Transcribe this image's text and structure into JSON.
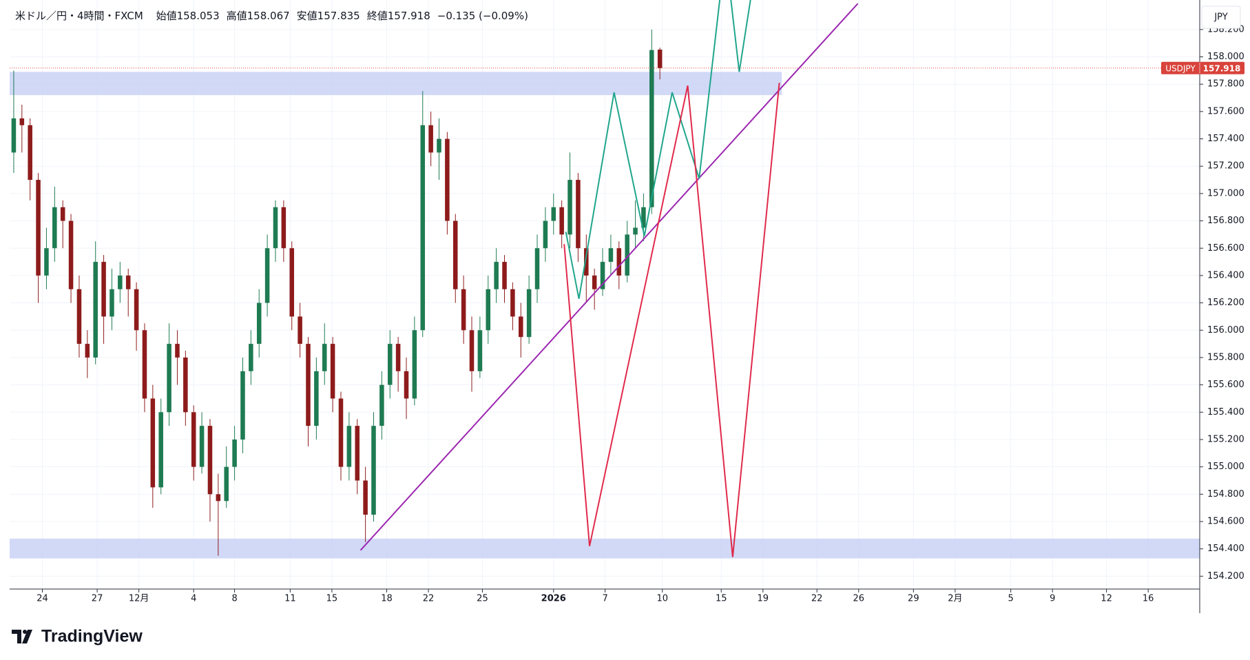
{
  "chart_data": {
    "type": "candlestick",
    "title": "米ドル／円・4時間・FXCM",
    "ohlc_legend": [
      {
        "label": "始値",
        "value": 158.053
      },
      {
        "label": "高値",
        "value": 158.067
      },
      {
        "label": "安値",
        "value": 157.835
      },
      {
        "label": "終値",
        "value": 157.918
      }
    ],
    "change_label": "−0.135 (−0.09%)",
    "symbol": "USDJPY",
    "currency": "JPY",
    "open": [
      157.3,
      157.55,
      157.5,
      157.1,
      156.4,
      156.6,
      156.9,
      156.8,
      156.3,
      155.9,
      155.8,
      156.5,
      156.1,
      156.3,
      156.4,
      156.3,
      156.0,
      155.5,
      154.85,
      155.4,
      155.9,
      155.8,
      155.4,
      155.0,
      155.3,
      154.8,
      154.75,
      155.0,
      155.2,
      155.7,
      155.9,
      156.2,
      156.6,
      156.9,
      156.6,
      156.1,
      155.9,
      155.3,
      155.7,
      155.9,
      155.5,
      155.0,
      155.3,
      154.9,
      154.65,
      155.3,
      155.6,
      155.9,
      155.7,
      155.5,
      156.0,
      157.5,
      157.3,
      157.4,
      156.8,
      156.3,
      156.0,
      155.7,
      156.0,
      156.3,
      156.5,
      156.3,
      156.1,
      155.95,
      156.3,
      156.6,
      156.8,
      156.9,
      156.7,
      157.1,
      156.6,
      156.4,
      156.3,
      156.5,
      156.6,
      156.4,
      156.7,
      156.75,
      156.9,
      158.053
    ],
    "high": [
      157.9,
      157.65,
      157.55,
      157.15,
      156.75,
      157.05,
      156.95,
      156.85,
      156.4,
      156.0,
      156.65,
      156.55,
      156.45,
      156.5,
      156.45,
      156.35,
      156.05,
      155.6,
      155.5,
      156.05,
      156.0,
      155.85,
      155.45,
      155.4,
      155.35,
      154.95,
      155.15,
      155.3,
      155.8,
      156.0,
      156.3,
      156.7,
      156.95,
      156.95,
      156.65,
      156.2,
      155.95,
      155.8,
      156.05,
      155.95,
      155.55,
      155.4,
      155.35,
      155.0,
      155.4,
      155.7,
      156.0,
      155.95,
      155.8,
      156.1,
      157.75,
      157.6,
      157.55,
      157.45,
      156.85,
      156.4,
      156.1,
      156.1,
      156.4,
      156.6,
      156.55,
      156.35,
      156.2,
      156.4,
      156.7,
      156.9,
      157.0,
      156.95,
      157.3,
      157.15,
      156.7,
      156.45,
      156.6,
      156.7,
      156.65,
      156.8,
      156.95,
      157.0,
      158.2,
      158.067
    ],
    "low": [
      157.15,
      157.3,
      156.95,
      156.2,
      156.3,
      156.5,
      156.6,
      156.2,
      155.8,
      155.65,
      155.75,
      155.9,
      156.0,
      156.2,
      156.1,
      155.85,
      155.4,
      154.7,
      154.8,
      155.3,
      155.6,
      155.3,
      154.9,
      154.95,
      154.6,
      154.35,
      154.7,
      154.9,
      155.1,
      155.6,
      155.8,
      156.1,
      156.5,
      156.5,
      156.0,
      155.8,
      155.15,
      155.2,
      155.6,
      155.4,
      154.9,
      154.9,
      154.8,
      154.45,
      154.6,
      155.2,
      155.5,
      155.55,
      155.35,
      155.45,
      155.95,
      157.2,
      157.1,
      156.7,
      156.2,
      155.9,
      155.55,
      155.65,
      155.9,
      156.2,
      156.2,
      156.0,
      155.8,
      155.9,
      156.2,
      156.5,
      156.7,
      156.6,
      156.6,
      156.5,
      156.2,
      156.15,
      156.25,
      156.4,
      156.3,
      156.35,
      156.6,
      156.65,
      156.85,
      157.835
    ],
    "close": [
      157.55,
      157.5,
      157.1,
      156.4,
      156.6,
      156.9,
      156.8,
      156.3,
      155.9,
      155.8,
      156.5,
      156.1,
      156.3,
      156.4,
      156.3,
      156.0,
      155.5,
      154.85,
      155.4,
      155.9,
      155.8,
      155.4,
      155.0,
      155.3,
      154.8,
      154.75,
      155.0,
      155.2,
      155.7,
      155.9,
      156.2,
      156.6,
      156.9,
      156.6,
      156.1,
      155.9,
      155.3,
      155.7,
      155.9,
      155.5,
      155.0,
      155.3,
      154.9,
      154.65,
      155.3,
      155.6,
      155.9,
      155.7,
      155.5,
      156.0,
      157.5,
      157.3,
      157.4,
      156.8,
      156.3,
      156.0,
      155.7,
      156.0,
      156.3,
      156.5,
      156.3,
      156.1,
      155.95,
      156.3,
      156.6,
      156.8,
      156.9,
      156.7,
      157.1,
      156.6,
      156.4,
      156.3,
      156.5,
      156.6,
      156.4,
      156.7,
      156.75,
      156.9,
      158.05,
      157.918
    ],
    "up_color": "#1e7b52",
    "down_color": "#8e1b1b",
    "last_price_color": "#d8433b",
    "xlim": [
      -0.5,
      145
    ],
    "xticks": [
      {
        "value": 3.5,
        "label": "24"
      },
      {
        "value": 10.2,
        "label": "27"
      },
      {
        "value": 15.3,
        "label": "12月"
      },
      {
        "value": 22.0,
        "label": "4"
      },
      {
        "value": 27.0,
        "label": "8"
      },
      {
        "value": 33.8,
        "label": "11"
      },
      {
        "value": 38.9,
        "label": "15"
      },
      {
        "value": 45.6,
        "label": "18"
      },
      {
        "value": 50.7,
        "label": "22"
      },
      {
        "value": 57.3,
        "label": "25"
      },
      {
        "value": 66.0,
        "label": "2026",
        "bold": true
      },
      {
        "value": 72.3,
        "label": "7"
      },
      {
        "value": 79.3,
        "label": "10"
      },
      {
        "value": 86.5,
        "label": "15"
      },
      {
        "value": 91.6,
        "label": "19"
      },
      {
        "value": 98.2,
        "label": "22"
      },
      {
        "value": 103.3,
        "label": "26"
      },
      {
        "value": 110.0,
        "label": "29"
      },
      {
        "value": 115.1,
        "label": "2月"
      },
      {
        "value": 121.9,
        "label": "5"
      },
      {
        "value": 127.0,
        "label": "9"
      },
      {
        "value": 133.6,
        "label": "12"
      },
      {
        "value": 138.7,
        "label": "16"
      }
    ],
    "ylim": [
      154.106,
      158.416
    ],
    "yticks": [
      {
        "value": 154.2,
        "label": "154.200"
      },
      {
        "value": 154.4,
        "label": "154.400"
      },
      {
        "value": 154.6,
        "label": "154.600"
      },
      {
        "value": 154.8,
        "label": "154.800"
      },
      {
        "value": 155.0,
        "label": "155.000"
      },
      {
        "value": 155.2,
        "label": "155.200"
      },
      {
        "value": 155.4,
        "label": "155.400"
      },
      {
        "value": 155.6,
        "label": "155.600"
      },
      {
        "value": 155.8,
        "label": "155.800"
      },
      {
        "value": 156.0,
        "label": "156.000"
      },
      {
        "value": 156.2,
        "label": "156.200"
      },
      {
        "value": 156.4,
        "label": "156.400"
      },
      {
        "value": 156.6,
        "label": "156.600"
      },
      {
        "value": 156.8,
        "label": "156.800"
      },
      {
        "value": 157.0,
        "label": "157.000"
      },
      {
        "value": 157.2,
        "label": "157.200"
      },
      {
        "value": 157.4,
        "label": "157.400"
      },
      {
        "value": 157.6,
        "label": "157.600"
      },
      {
        "value": 157.8,
        "label": "157.800"
      },
      {
        "value": 158.0,
        "label": "158.000"
      },
      {
        "value": 158.2,
        "label": "158.200"
      }
    ],
    "grid": true,
    "zones": [
      {
        "color": "#c9d2f6",
        "x": [
          -0.5,
          93.9
        ],
        "y": [
          157.72,
          157.89
        ]
      },
      {
        "color": "#c9d2f6",
        "x": [
          -0.5,
          145
        ],
        "y": [
          154.33,
          154.475
        ]
      }
    ],
    "drawings": [
      {
        "color": "#9c27b0",
        "x": [
          42.4,
          103.2
        ],
        "y": [
          154.39,
          158.39
        ]
      },
      {
        "color": "#1fa58b",
        "x": [
          67.5,
          69.1,
          73.4,
          77.1,
          80.5,
          83.8,
          87.0,
          88.7,
          91.0
        ],
        "y": [
          156.72,
          156.23,
          157.74,
          156.69,
          157.74,
          157.11,
          158.77,
          157.89,
          158.77
        ]
      },
      {
        "color": "#e0294a",
        "x": [
          67.3,
          70.4,
          82.4,
          87.9,
          93.6
        ],
        "y": [
          156.63,
          154.42,
          157.79,
          154.34,
          157.81
        ]
      }
    ],
    "brand": "TradingView"
  }
}
